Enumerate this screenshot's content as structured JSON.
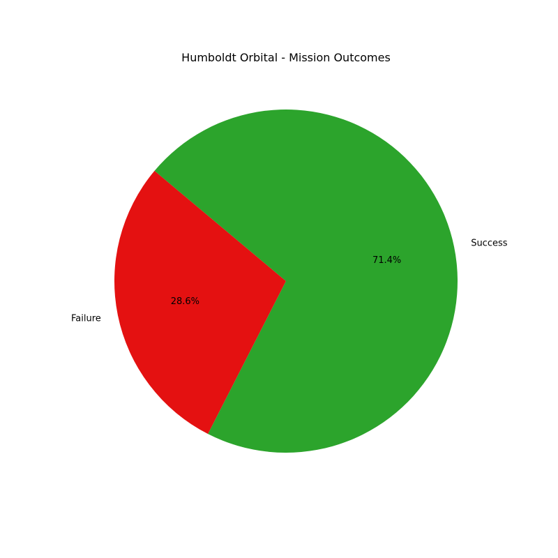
{
  "chart_data": {
    "type": "pie",
    "title": "Humboldt Orbital - Mission Outcomes",
    "slices": [
      {
        "label": "Failure",
        "value": 28.6,
        "display": "28.6%",
        "color": "#e41111"
      },
      {
        "label": "Success",
        "value": 71.4,
        "display": "71.4%",
        "color": "#2ca42c"
      }
    ],
    "start_angle_deg": 140,
    "direction": "counterclockwise",
    "legend": "none"
  }
}
